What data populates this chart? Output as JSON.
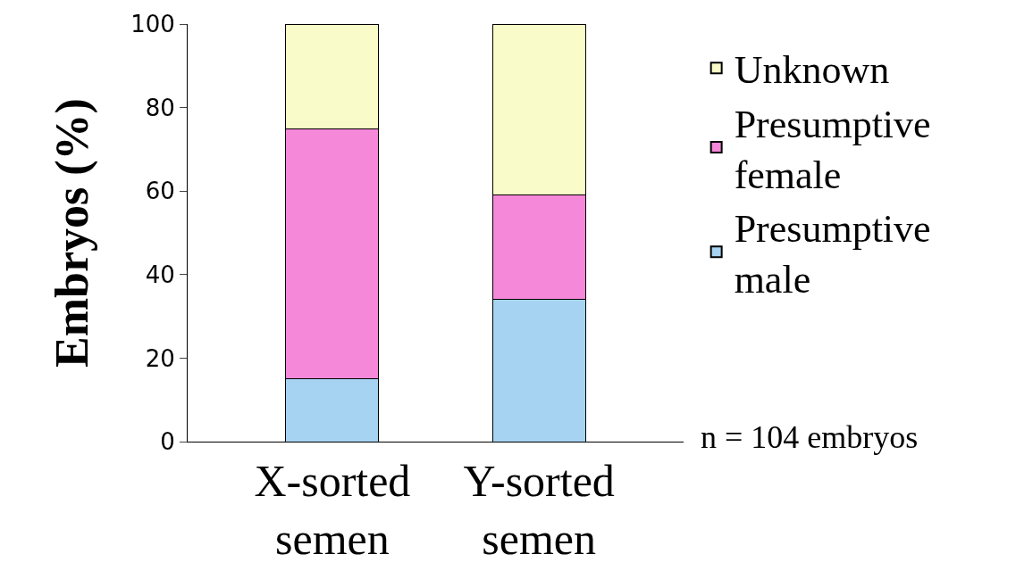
{
  "chart_data": {
    "type": "bar",
    "stacked": true,
    "ylabel": "Embryos (%)",
    "categories": [
      "X-sorted\nsemen",
      "Y-sorted\nsemen"
    ],
    "series": [
      {
        "name": "Presumptive\nmale",
        "color": "#a6d3f2",
        "values": [
          15,
          34
        ]
      },
      {
        "name": "Presumptive\nfemale",
        "color": "#f588d8",
        "values": [
          60,
          25
        ]
      },
      {
        "name": "Unknown",
        "color": "#f9fcc8",
        "values": [
          25,
          41
        ]
      }
    ],
    "ylim": [
      0,
      100
    ],
    "yticks": [
      0,
      20,
      40,
      60,
      80,
      100
    ],
    "legend": "right",
    "annotations": [
      "n = 104 embryos"
    ]
  }
}
